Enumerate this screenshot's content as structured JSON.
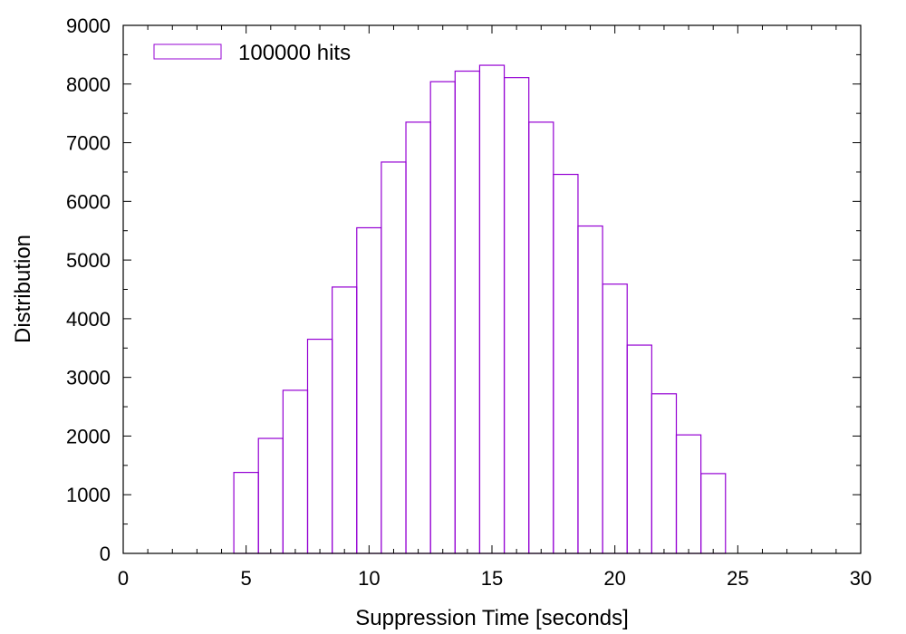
{
  "chart_data": {
    "type": "bar",
    "title": "",
    "xlabel": "Suppression Time [seconds]",
    "ylabel": "Distribution",
    "xlim": [
      0,
      30
    ],
    "ylim": [
      0,
      9000
    ],
    "xticks": [
      "0",
      "5",
      "10",
      "15",
      "20",
      "25",
      "30"
    ],
    "yticks": [
      "0",
      "1000",
      "2000",
      "3000",
      "4000",
      "5000",
      "6000",
      "7000",
      "8000",
      "9000"
    ],
    "bin_width": 1,
    "x": [
      5,
      6,
      7,
      8,
      9,
      10,
      11,
      12,
      13,
      14,
      15,
      16,
      17,
      18,
      19,
      20,
      21,
      22,
      23,
      24
    ],
    "series": [
      {
        "name": "100000 hits",
        "color": "#9400d3",
        "values": [
          1380,
          1960,
          2780,
          3650,
          4540,
          5550,
          6670,
          7350,
          8040,
          8220,
          8320,
          8110,
          7350,
          6460,
          5580,
          4590,
          3550,
          2720,
          2020,
          1360
        ]
      }
    ],
    "grid": false,
    "legend_position": "top-left"
  }
}
